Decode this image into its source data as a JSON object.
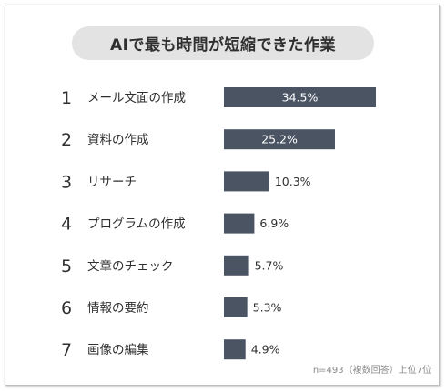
{
  "chart_data": {
    "type": "bar",
    "orientation": "horizontal",
    "title": "AIで最も時間が短縮できた作業",
    "ranks": [
      "1",
      "2",
      "3",
      "4",
      "5",
      "6",
      "7"
    ],
    "categories": [
      "メール文面の作成",
      "資料の作成",
      "リサーチ",
      "プログラムの作成",
      "文章のチェック",
      "情報の要約",
      "画像の編集"
    ],
    "values": [
      34.5,
      25.2,
      10.3,
      6.9,
      5.7,
      5.3,
      4.9
    ],
    "value_labels": [
      "34.5%",
      "25.2%",
      "10.3%",
      "6.9%",
      "5.7%",
      "5.3%",
      "4.9%"
    ],
    "note": "n=493（複数回答）上位7位",
    "xlim": [
      0,
      34.5
    ],
    "grid": false,
    "legend": "none",
    "bar_color": "#4a5463"
  }
}
